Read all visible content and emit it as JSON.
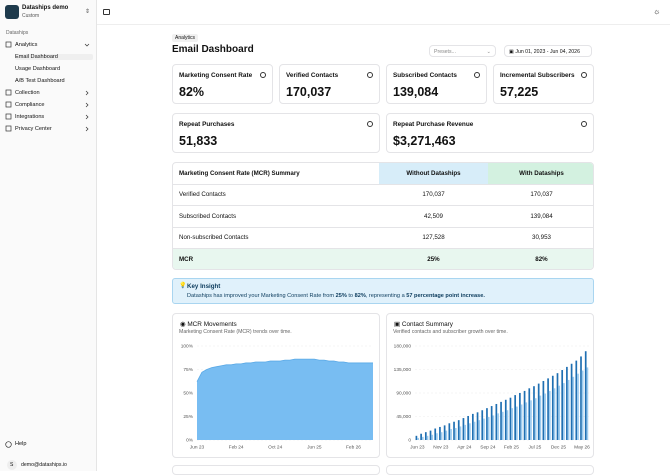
{
  "sidebar": {
    "workspace": {
      "name": "Dataships demo",
      "plan": "Custom"
    },
    "section": "Dataships",
    "nav": [
      {
        "label": "Analytics",
        "children": [
          "Email Dashboard",
          "Usage Dashboard",
          "A/B Test Dashboard"
        ]
      },
      {
        "label": "Collection"
      },
      {
        "label": "Compliance"
      },
      {
        "label": "Integrations"
      },
      {
        "label": "Privacy Center"
      }
    ],
    "help": "Help",
    "user": {
      "avatar": "S",
      "email": "demo@dataships.io"
    }
  },
  "header": {
    "breadcrumb": "Analytics",
    "title": "Email Dashboard",
    "presets": "Presets...",
    "date_range": "Jun 01, 2023 - Jun 04, 2026"
  },
  "kpis": [
    {
      "label": "Marketing Consent Rate",
      "value": "82%"
    },
    {
      "label": "Verified Contacts",
      "value": "170,037"
    },
    {
      "label": "Subscribed Contacts",
      "value": "139,084"
    },
    {
      "label": "Incremental Subscribers",
      "value": "57,225"
    },
    {
      "label": "Repeat Purchases",
      "value": "51,833"
    },
    {
      "label": "Repeat Purchase Revenue",
      "value": "$3,271,463"
    }
  ],
  "table": {
    "columns": [
      "Marketing Consent Rate (MCR) Summary",
      "Without Dataships",
      "With Dataships"
    ],
    "rows": [
      [
        "Verified Contacts",
        "170,037",
        "170,037"
      ],
      [
        "Subscribed Contacts",
        "42,509",
        "139,084"
      ],
      [
        "Non-subscribed Contacts",
        "127,528",
        "30,953"
      ],
      [
        "MCR",
        "25%",
        "82%"
      ]
    ]
  },
  "insight": {
    "title": "Key Insight",
    "parts": [
      "Dataships has improved your Marketing Consent Rate from ",
      "25%",
      " to ",
      "82%",
      ", representing a ",
      "57 percentage point increase."
    ]
  },
  "chart_data": [
    {
      "type": "area",
      "title": "MCR Movements",
      "subtitle": "Marketing Consent Rate (MCR) trends over time.",
      "color": "#78bdf2",
      "categories": [
        "Jun 23",
        null,
        null,
        null,
        null,
        null,
        null,
        null,
        "Feb 24",
        null,
        null,
        null,
        null,
        null,
        null,
        null,
        "Oct 24",
        null,
        null,
        null,
        null,
        null,
        null,
        null,
        "Jun 25",
        null,
        null,
        null,
        null,
        null,
        null,
        null,
        "Feb 26",
        null,
        null,
        null,
        null
      ],
      "values": [
        62,
        72,
        75,
        77,
        78,
        79,
        80,
        80,
        81,
        81,
        82,
        82,
        83,
        83,
        83,
        84,
        84,
        84,
        85,
        85,
        86,
        86,
        86,
        86,
        86,
        85,
        85,
        84,
        84,
        83,
        83,
        82,
        82,
        82,
        82,
        82,
        82
      ],
      "ylim": [
        0,
        100
      ],
      "yticks": [
        {
          "value": 0,
          "label": "0%"
        },
        {
          "value": 25,
          "label": "25%"
        },
        {
          "value": 50,
          "label": "50%"
        },
        {
          "value": 75,
          "label": "75%"
        },
        {
          "value": 100,
          "label": "100%"
        }
      ],
      "grid": true
    },
    {
      "type": "bar",
      "title": "Contact Summary",
      "subtitle": "Verified contacts and subscriber growth over time.",
      "categories": [
        "Jun 23",
        null,
        null,
        null,
        null,
        "Nov 23",
        null,
        null,
        null,
        null,
        "Apr 24",
        null,
        null,
        null,
        null,
        "Sep 24",
        null,
        null,
        null,
        null,
        "Feb 25",
        null,
        null,
        null,
        null,
        "Jul 25",
        null,
        null,
        null,
        null,
        "Dec 25",
        null,
        null,
        null,
        null,
        "May 26",
        null
      ],
      "series": [
        {
          "color": "#1f6fb2",
          "values": [
            8000,
            12000,
            15000,
            18000,
            22000,
            25000,
            28000,
            32000,
            35000,
            38000,
            42000,
            46000,
            50000,
            53000,
            57000,
            61000,
            65000,
            69000,
            73000,
            77000,
            81000,
            86000,
            90000,
            94000,
            99000,
            103000,
            108000,
            113000,
            118000,
            123000,
            128000,
            134000,
            140000,
            146000,
            152000,
            160000,
            170000
          ]
        },
        {
          "color": "#9ccbef",
          "values": [
            4000,
            6000,
            8000,
            10000,
            13000,
            15000,
            18000,
            21000,
            23000,
            26000,
            29000,
            32000,
            35000,
            38000,
            41000,
            44000,
            47000,
            51000,
            54000,
            57000,
            61000,
            64000,
            68000,
            72000,
            76000,
            80000,
            85000,
            89000,
            94000,
            99000,
            104000,
            109000,
            115000,
            121000,
            127000,
            133000,
            139000
          ]
        }
      ],
      "ylim": [
        0,
        180000
      ],
      "yticks": [
        0,
        {
          "value": 45000,
          "label": "45,000"
        },
        {
          "value": 90000,
          "label": "90,000"
        },
        {
          "value": 135000,
          "label": "135,000"
        },
        {
          "value": 180000,
          "label": "180,000"
        }
      ],
      "grid": true
    }
  ]
}
